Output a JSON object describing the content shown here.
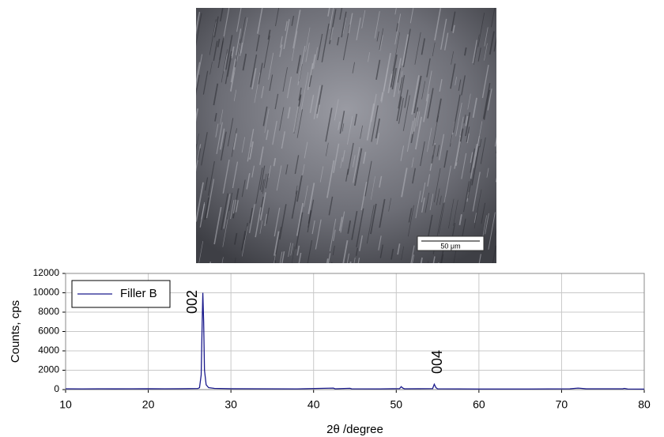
{
  "image": {
    "scale_bar": "50 μm"
  },
  "chart_data": {
    "type": "line",
    "xlabel": "2θ /degree",
    "ylabel": "Counts, cps",
    "x": [
      10,
      12,
      14,
      16,
      18,
      20,
      22,
      24,
      26,
      26.2,
      26.4,
      26.5,
      26.6,
      26.7,
      26.8,
      27,
      27.3,
      28,
      30,
      34,
      38,
      42.4,
      42.6,
      44.4,
      44.6,
      48,
      50.4,
      50.6,
      50.8,
      51,
      54.4,
      54.6,
      54.8,
      55,
      60,
      66,
      71,
      72,
      73,
      77.4,
      77.6,
      78,
      80
    ],
    "series": [
      {
        "name": "Filler B",
        "color": "#1a1a8c",
        "values": [
          80,
          70,
          80,
          75,
          80,
          85,
          80,
          90,
          110,
          200,
          1500,
          6000,
          10000,
          7000,
          2000,
          500,
          200,
          120,
          90,
          80,
          70,
          150,
          80,
          130,
          80,
          70,
          100,
          300,
          150,
          80,
          100,
          550,
          200,
          80,
          60,
          60,
          80,
          150,
          80,
          80,
          120,
          60,
          50
        ]
      }
    ],
    "annotations": [
      "002",
      "004"
    ],
    "xlim": [
      10,
      80
    ],
    "ylim": [
      0,
      12000
    ],
    "xticks": [
      10,
      20,
      30,
      40,
      50,
      60,
      70,
      80
    ],
    "yticks": [
      0,
      2000,
      4000,
      6000,
      8000,
      10000,
      12000
    ],
    "grid": true,
    "legend": "upper left"
  }
}
